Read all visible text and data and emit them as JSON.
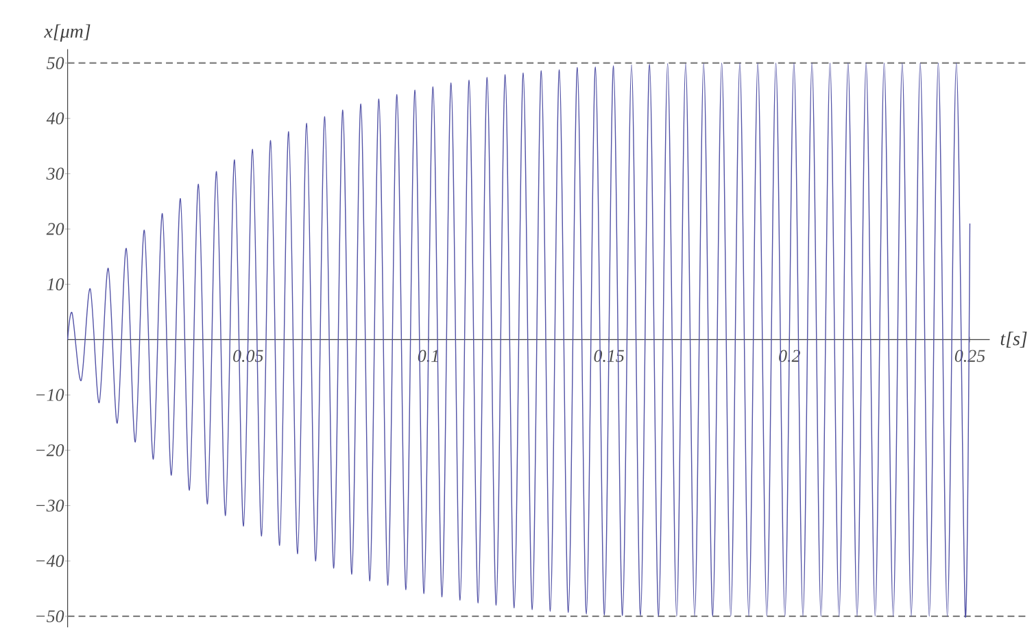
{
  "chart_data": {
    "type": "line",
    "xlabel": "t[s]",
    "ylabel": "x[μm]",
    "x": [
      0,
      0.00125,
      0.00375,
      0.00625,
      0.00875,
      0.01125,
      0.01375,
      0.01625,
      0.01875,
      0.02125,
      0.02375,
      0.02625,
      0.02875,
      0.03125,
      0.03375,
      0.03625,
      0.03875,
      0.04125,
      0.04375,
      0.04625,
      0.04875,
      0.05125,
      0.05375,
      0.05625,
      0.05875,
      0.06125,
      0.06375,
      0.06625,
      0.06875,
      0.07125,
      0.07375,
      0.07625,
      0.07875,
      0.08125,
      0.08375,
      0.08625,
      0.08875,
      0.09125,
      0.09375,
      0.09625,
      0.09875,
      0.10125,
      0.10375,
      0.10625,
      0.10875,
      0.11125,
      0.11375,
      0.11625,
      0.11875,
      0.12125,
      0.12375,
      0.12625,
      0.12875,
      0.13125,
      0.13375,
      0.13625,
      0.13875,
      0.14125,
      0.14375,
      0.14625,
      0.14875,
      0.15125,
      0.15375,
      0.15625,
      0.15875,
      0.16125,
      0.16375,
      0.16625,
      0.16875,
      0.17125,
      0.17375,
      0.17625,
      0.17875,
      0.18125,
      0.18375,
      0.18625,
      0.18875,
      0.19125,
      0.19375,
      0.19625,
      0.19875,
      0.20125,
      0.20375,
      0.20625,
      0.20875,
      0.21125,
      0.21375,
      0.21625,
      0.21875,
      0.22125,
      0.22375,
      0.22625,
      0.22875,
      0.23125,
      0.23375,
      0.23625,
      0.23875,
      0.24125,
      0.24375,
      0.24625,
      0.24875,
      0.25
    ],
    "series": [
      {
        "color": "#5252a6",
        "values": [
          0,
          4.8,
          -7.4,
          9.2,
          -11.4,
          12.9,
          -15.1,
          16.5,
          -18.5,
          19.8,
          -21.6,
          22.8,
          -24.5,
          25.5,
          -27.2,
          28.1,
          -29.7,
          30.4,
          -31.8,
          32.5,
          -33.7,
          34.4,
          -35.5,
          36.0,
          -37.2,
          37.6,
          -38.7,
          39.1,
          -40.0,
          40.3,
          -41.3,
          41.5,
          -42.4,
          42.6,
          -43.6,
          43.5,
          -44.4,
          44.3,
          -45.2,
          45.1,
          -45.9,
          45.7,
          -46.5,
          46.4,
          -47.1,
          46.9,
          -47.6,
          47.4,
          -48.0,
          47.9,
          -48.5,
          48.2,
          -48.8,
          48.6,
          -49.1,
          48.8,
          -49.3,
          49.2,
          -49.6,
          49.3,
          -49.8,
          49.5,
          -49.9,
          49.7,
          -49.9,
          49.8,
          -50,
          49.9,
          -50,
          49.9,
          -50,
          49.9,
          -50,
          50,
          -50,
          50,
          -50,
          50,
          -50,
          50,
          -50,
          50,
          -50,
          50,
          -50,
          50,
          -50,
          50,
          -50,
          50,
          -50,
          50,
          -50,
          50,
          -50,
          50,
          -50,
          50,
          -50,
          50,
          -50,
          21
        ]
      }
    ],
    "xlim": [
      0,
      0.2555
    ],
    "ylim": [
      -52,
      52.5
    ],
    "xticks": [
      0.05,
      0.1,
      0.15,
      0.2,
      0.25
    ],
    "yticks": [
      {
        "value": -50,
        "label": "−50"
      },
      {
        "value": -40,
        "label": "−40"
      },
      {
        "value": -30,
        "label": "−30"
      },
      {
        "value": -20,
        "label": "−20"
      },
      {
        "value": -10,
        "label": "−10"
      },
      10,
      20,
      30,
      40,
      50
    ],
    "ref_lines": [
      {
        "axis": "y",
        "value": 50,
        "color": "#808080",
        "line_style": "dashed"
      },
      {
        "axis": "y",
        "value": -50,
        "color": "#808080",
        "line_style": "dashed"
      }
    ]
  }
}
